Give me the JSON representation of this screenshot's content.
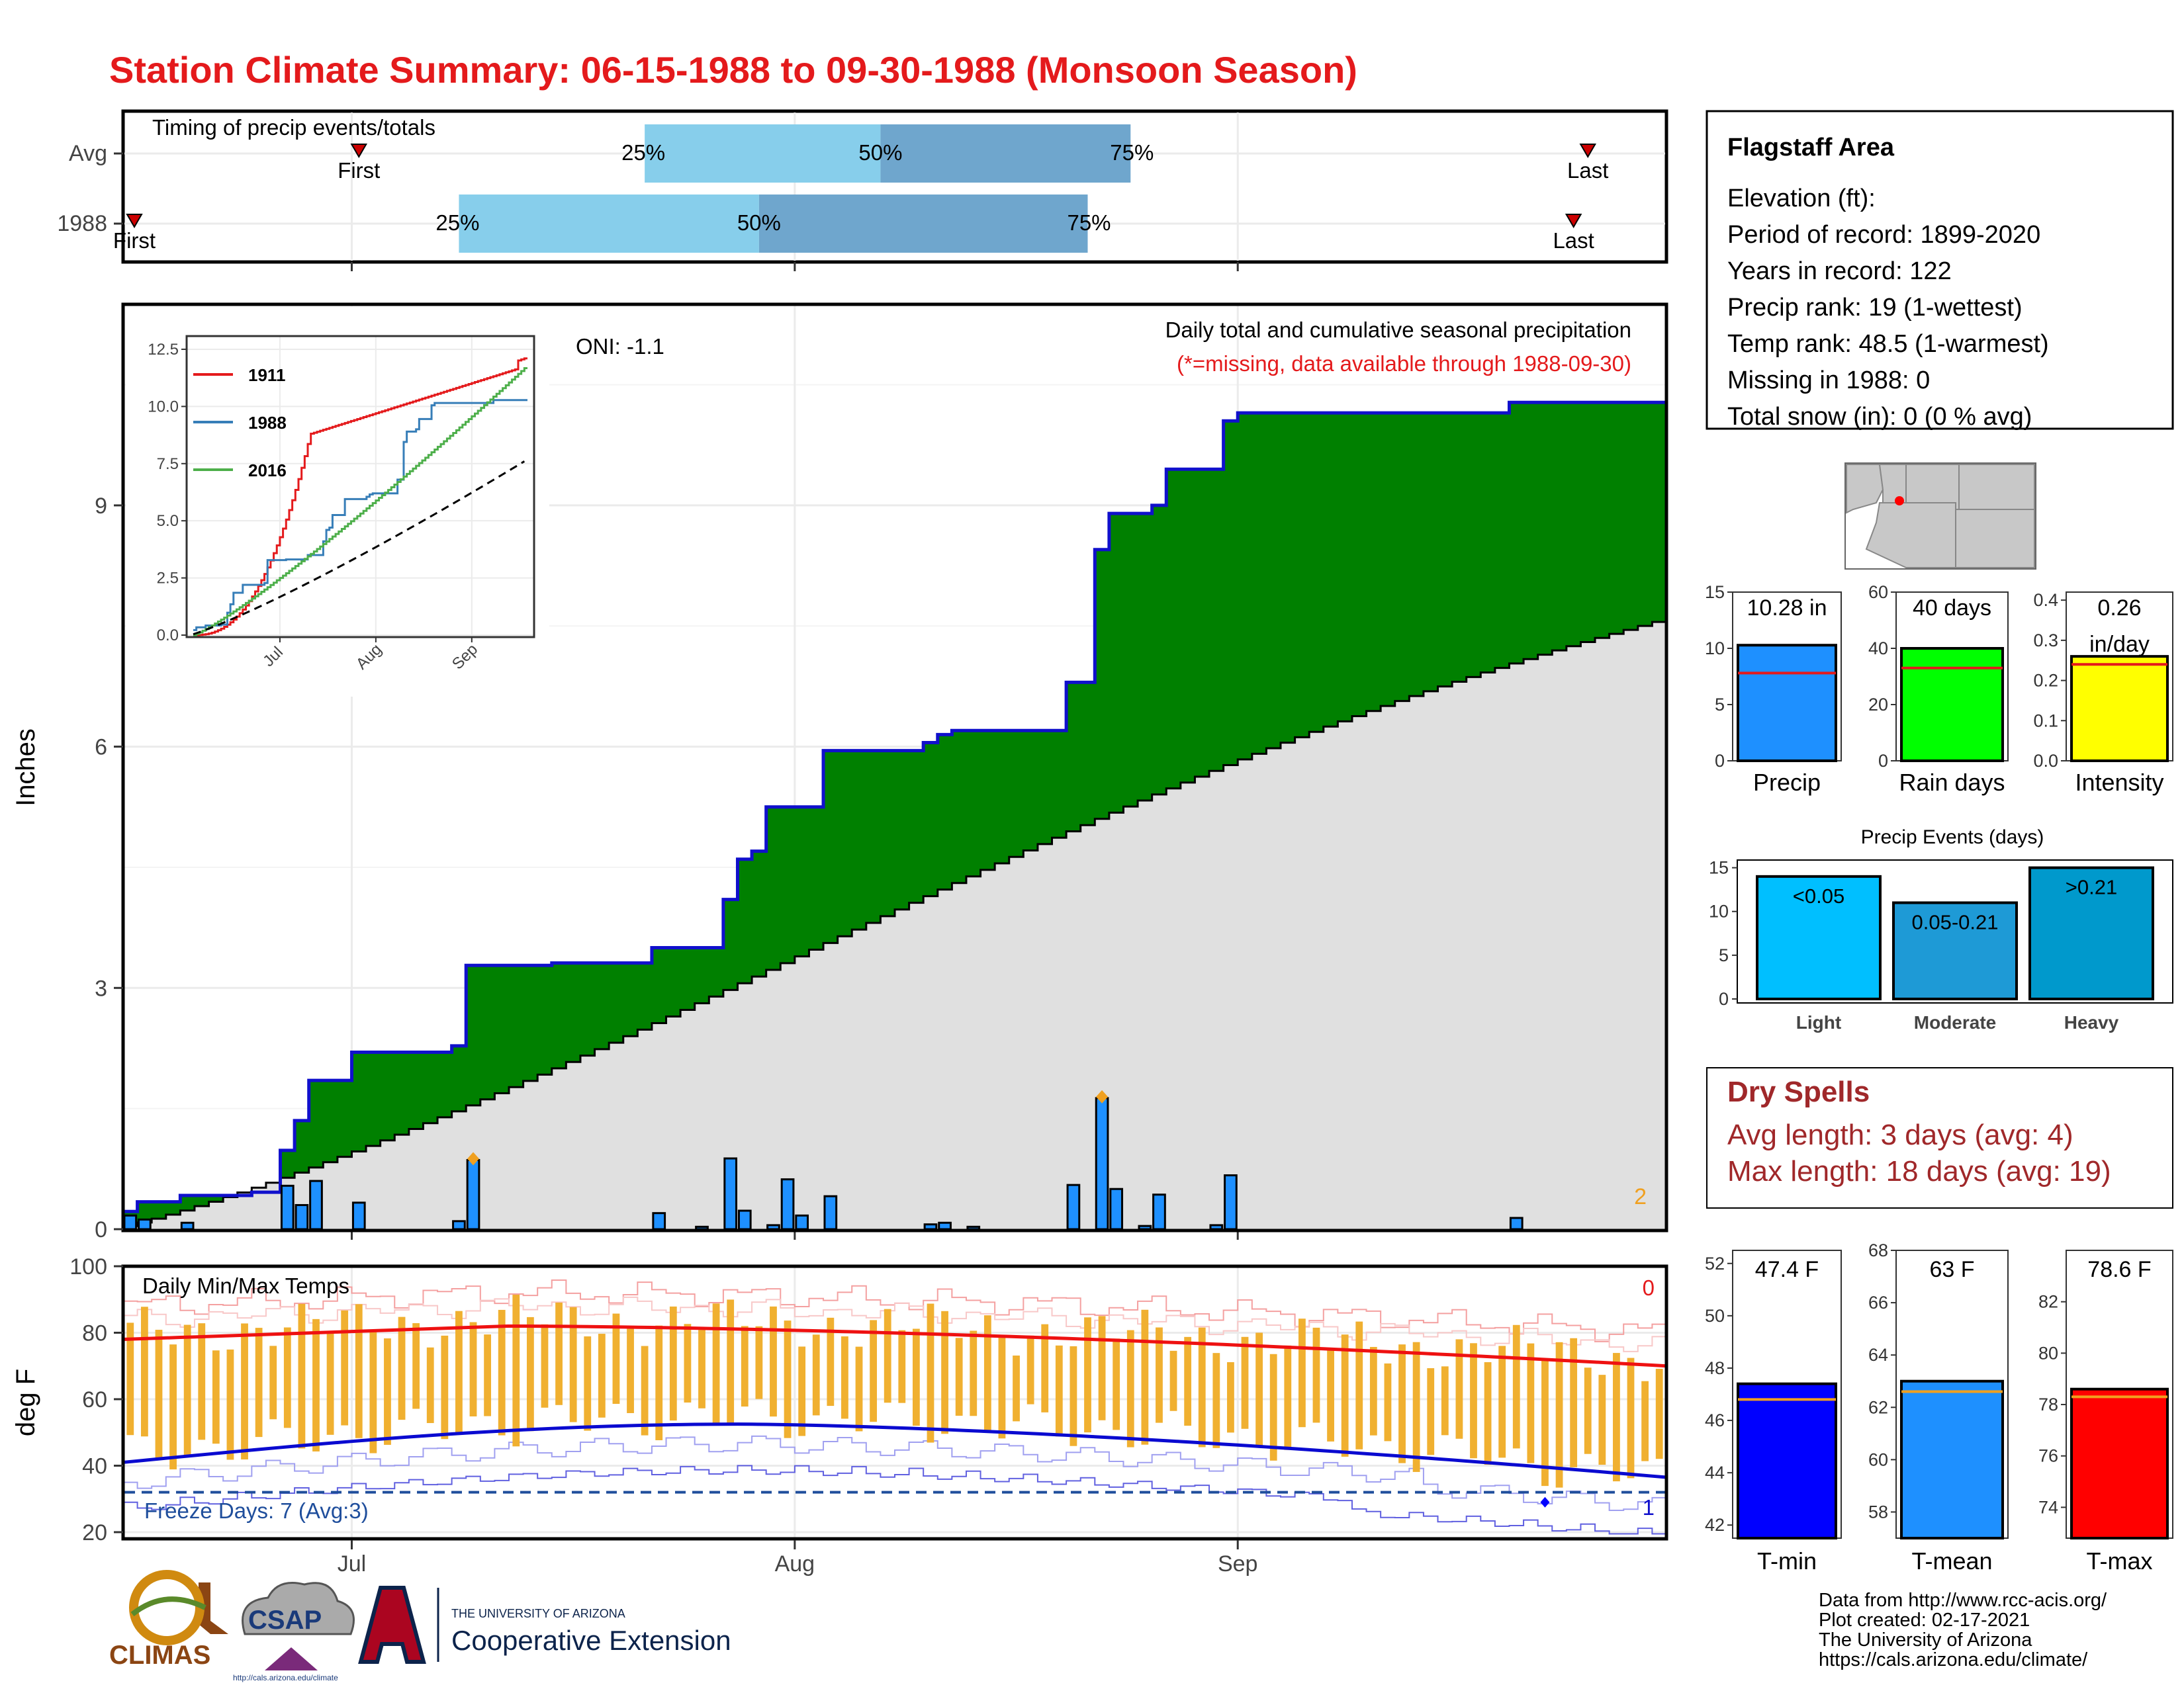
{
  "title": "Station Climate Summary: 06-15-1988 to 09-30-1988 (Monsoon Season)",
  "colors": {
    "title": "#e41a1c",
    "green": "#008000",
    "blue_line": "#1010cc",
    "bar_blue": "#1e90ff",
    "gray_fill": "#e0e0e0",
    "light_blue": "#87ceeb",
    "mid_blue": "#6fa6cd",
    "orange": "#f0a020",
    "dry_red": "#a0282a",
    "tmin": "#0000ff",
    "tmean": "#1e90ff",
    "tmax": "#ff0000",
    "rain_days": "#00ff00",
    "intensity": "#ffff00"
  },
  "timing": {
    "title": "Timing of precip events/totals",
    "rows": [
      {
        "label": "Avg",
        "first_label": "First",
        "last_label": "Last",
        "first_day": 16,
        "last_day": 102,
        "q25": 36,
        "q50": 52.5,
        "q75": 70,
        "q25_label": "25%",
        "q50_label": "50%",
        "q75_label": "75%"
      },
      {
        "label": "1988",
        "first_label": "First",
        "last_label": "Last",
        "first_day": 1,
        "last_day": 101,
        "q25": 23,
        "q50": 44,
        "q75": 67,
        "q25_label": "25%",
        "q50_label": "50%",
        "q75_label": "75%"
      }
    ]
  },
  "precip_panel": {
    "ylabel": "Inches",
    "annotation_title": "Daily total and cumulative seasonal precipitation",
    "annotation_missing": "(*=missing, data available through 1988-09-30)",
    "oni_label": "ONI: -1.1",
    "corner_count": "2",
    "y_ticks": [
      "0",
      "3",
      "6",
      "9"
    ],
    "x_ticks": [
      "Jul",
      "Aug",
      "Sep"
    ]
  },
  "inset": {
    "y_ticks": [
      "0.0",
      "2.5",
      "5.0",
      "7.5",
      "10.0",
      "12.5"
    ],
    "x_ticks": [
      "Jul",
      "Aug",
      "Sep"
    ],
    "legend": [
      "1911",
      "1988",
      "2016"
    ]
  },
  "temp_panel": {
    "title": "Daily Min/Max Temps",
    "ylabel": "deg F",
    "freeze_label": "Freeze Days: 7 (Avg:3)",
    "max_count": "0",
    "min_count": "1",
    "y_ticks": [
      "20",
      "40",
      "60",
      "80",
      "100"
    ],
    "x_ticks": [
      "Jul",
      "Aug",
      "Sep"
    ]
  },
  "station": {
    "name": "Flagstaff Area",
    "elevation": "Elevation (ft):",
    "period": "Period of record: 1899-2020",
    "years": "Years in record: 122",
    "precip_rank": "Precip rank: 19 (1-wettest)",
    "temp_rank": "Temp rank: 48.5 (1-warmest)",
    "missing": "Missing in 1988: 0",
    "snow": "Total snow (in): 0 (0 % avg)"
  },
  "summary_bars": [
    {
      "label": "Precip",
      "value": 10.28,
      "avg": 7.8,
      "value_label": "10.28 in",
      "ymax": 15,
      "ticks": [
        "0",
        "5",
        "10",
        "15"
      ],
      "tick_values": [
        0,
        5,
        10,
        15
      ]
    },
    {
      "label": "Rain days",
      "value": 40,
      "avg": 33,
      "value_label": "40 days",
      "ymax": 60,
      "ticks": [
        "0",
        "20",
        "40",
        "60"
      ],
      "tick_values": [
        0,
        20,
        40,
        60
      ]
    },
    {
      "label": "Intensity",
      "value": 0.26,
      "avg": 0.24,
      "value_label": "0.26",
      "value_label2": "in/day",
      "ymax": 0.42,
      "ticks": [
        "0.0",
        "0.1",
        "0.2",
        "0.3",
        "0.4"
      ],
      "tick_values": [
        0,
        0.1,
        0.2,
        0.3,
        0.4
      ]
    }
  ],
  "events": {
    "title": "Precip Events (days)",
    "ticks": [
      "0",
      "5",
      "10",
      "15"
    ],
    "bars": [
      {
        "name": "Light",
        "value": 14,
        "label": "<0.05"
      },
      {
        "name": "Moderate",
        "value": 11,
        "label": "0.05-0.21"
      },
      {
        "name": "Heavy",
        "value": 15,
        "label": ">0.21"
      }
    ]
  },
  "dry_spells": {
    "title": "Dry Spells",
    "avg": "Avg length: 3 days (avg: 4)",
    "max": "Max length: 18 days (avg: 19)"
  },
  "temp_bars": [
    {
      "label": "T-min",
      "value": 47.4,
      "avg": 46.8,
      "value_label": "47.4 F",
      "ymin": 41.5,
      "ymax": 52.5,
      "ticks": [
        "42",
        "44",
        "46",
        "48",
        "50",
        "52"
      ],
      "tick_values": [
        42,
        44,
        46,
        48,
        50,
        52
      ]
    },
    {
      "label": "T-mean",
      "value": 63,
      "avg": 62.6,
      "value_label": "63 F",
      "ymin": 57,
      "ymax": 68,
      "ticks": [
        "58",
        "60",
        "62",
        "64",
        "66",
        "68"
      ],
      "tick_values": [
        58,
        60,
        62,
        64,
        66,
        68
      ]
    },
    {
      "label": "T-max",
      "value": 78.6,
      "avg": 78.3,
      "value_label": "78.6 F",
      "ymin": 72.8,
      "ymax": 84,
      "ticks": [
        "74",
        "76",
        "78",
        "80",
        "82"
      ],
      "tick_values": [
        74,
        76,
        78,
        80,
        82
      ]
    }
  ],
  "credits": {
    "line1": "Data from http://www.rcc-acis.org/",
    "line2": "Plot created: 02-17-2021",
    "line3": "The University of Arizona",
    "line4": "https://cals.arizona.edu/climate/"
  },
  "logos": {
    "climas": "CLIMAS",
    "csap": "CSAP",
    "csap_url": "http://cals.arizona.edu/climate",
    "ua_small": "THE UNIVERSITY OF ARIZONA",
    "ua_big": "Cooperative Extension"
  },
  "chart_data": {
    "type": "area",
    "period": "1988-06-15 to 1988-09-30",
    "cumulative_steps_1988": [
      {
        "date": "06-15",
        "value": 0.22
      },
      {
        "date": "06-16",
        "value": 0.34
      },
      {
        "date": "06-19",
        "value": 0.42
      },
      {
        "date": "06-24",
        "value": 0.46
      },
      {
        "date": "06-26",
        "value": 0.98
      },
      {
        "date": "06-27",
        "value": 1.35
      },
      {
        "date": "06-28",
        "value": 1.85
      },
      {
        "date": "07-01",
        "value": 2.2
      },
      {
        "date": "07-08",
        "value": 2.28
      },
      {
        "date": "07-09",
        "value": 3.28
      },
      {
        "date": "07-15",
        "value": 3.31
      },
      {
        "date": "07-22",
        "value": 3.5
      },
      {
        "date": "07-27",
        "value": 4.1
      },
      {
        "date": "07-28",
        "value": 4.6
      },
      {
        "date": "07-29",
        "value": 4.7
      },
      {
        "date": "07-30",
        "value": 5.25
      },
      {
        "date": "08-03",
        "value": 5.95
      },
      {
        "date": "08-10",
        "value": 6.05
      },
      {
        "date": "08-11",
        "value": 6.15
      },
      {
        "date": "08-12",
        "value": 6.2
      },
      {
        "date": "08-20",
        "value": 6.8
      },
      {
        "date": "08-22",
        "value": 8.45
      },
      {
        "date": "08-23",
        "value": 8.9
      },
      {
        "date": "08-26",
        "value": 9.0
      },
      {
        "date": "08-27",
        "value": 9.45
      },
      {
        "date": "08-31",
        "value": 10.05
      },
      {
        "date": "09-01",
        "value": 10.15
      },
      {
        "date": "09-20",
        "value": 10.28
      }
    ],
    "average_cumulative_end": 7.55,
    "daily_precip_1988": [
      {
        "date": "06-15",
        "value": 0.17
      },
      {
        "date": "06-16",
        "value": 0.12
      },
      {
        "date": "06-19",
        "value": 0.08
      },
      {
        "date": "06-26",
        "value": 0.54
      },
      {
        "date": "06-27",
        "value": 0.3
      },
      {
        "date": "06-28",
        "value": 0.6
      },
      {
        "date": "07-01",
        "value": 0.33
      },
      {
        "date": "07-08",
        "value": 0.1
      },
      {
        "date": "07-09",
        "value": 0.86
      },
      {
        "date": "07-22",
        "value": 0.2
      },
      {
        "date": "07-25",
        "value": 0.03
      },
      {
        "date": "07-27",
        "value": 0.88
      },
      {
        "date": "07-28",
        "value": 0.23
      },
      {
        "date": "07-30",
        "value": 0.05
      },
      {
        "date": "07-31",
        "value": 0.62
      },
      {
        "date": "08-01",
        "value": 0.17
      },
      {
        "date": "08-03",
        "value": 0.41
      },
      {
        "date": "08-10",
        "value": 0.06
      },
      {
        "date": "08-11",
        "value": 0.08
      },
      {
        "date": "08-13",
        "value": 0.03
      },
      {
        "date": "08-20",
        "value": 0.55
      },
      {
        "date": "08-22",
        "value": 1.63
      },
      {
        "date": "08-23",
        "value": 0.5
      },
      {
        "date": "08-25",
        "value": 0.04
      },
      {
        "date": "08-26",
        "value": 0.43
      },
      {
        "date": "08-30",
        "value": 0.05
      },
      {
        "date": "08-31",
        "value": 0.67
      },
      {
        "date": "09-20",
        "value": 0.14
      }
    ],
    "ylim": [
      0,
      11.5
    ],
    "inset_ylim": [
      0,
      12.5
    ],
    "temps": {
      "ylim": [
        18,
        100
      ],
      "freeze_line": 32,
      "avg_max_start": 78,
      "avg_max_peak": 82,
      "avg_max_end": 70,
      "avg_min_start": 41,
      "avg_min_peak": 52.5,
      "avg_min_end": 36.5
    }
  }
}
